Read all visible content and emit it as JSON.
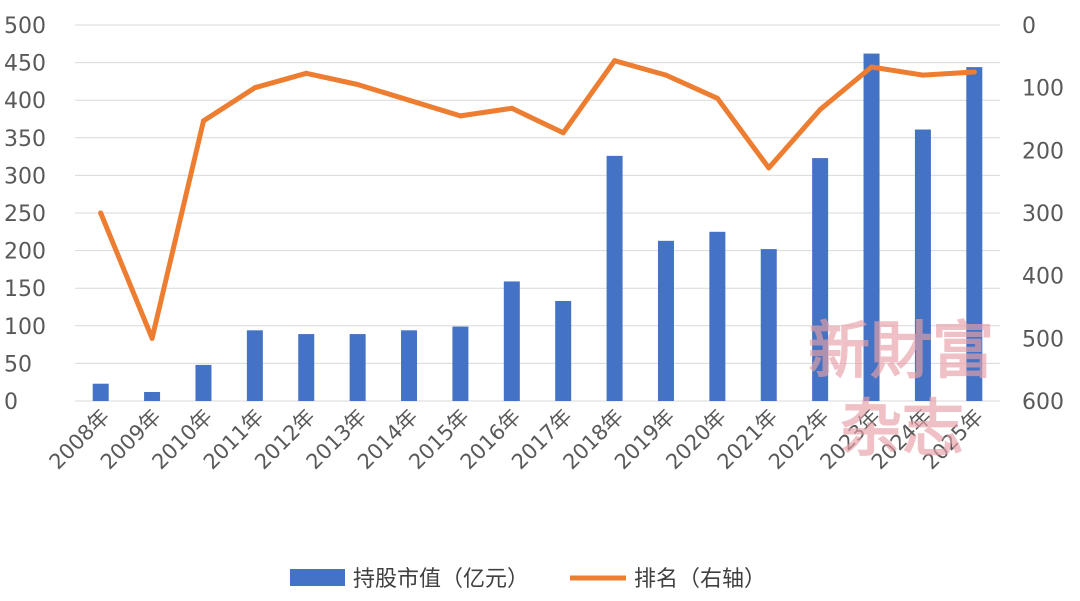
{
  "chart_data": {
    "type": "bar",
    "categories": [
      "2008年",
      "2009年",
      "2010年",
      "2011年",
      "2012年",
      "2013年",
      "2014年",
      "2015年",
      "2016年",
      "2017年",
      "2018年",
      "2019年",
      "2020年",
      "2021年",
      "2022年",
      "2023年",
      "2024年",
      "2025年"
    ],
    "series": [
      {
        "name": "持股市值（亿元）",
        "type": "bar",
        "axis": "left",
        "color": "#4472C4",
        "values": [
          23,
          12,
          48,
          94,
          89,
          89,
          94,
          99,
          159,
          133,
          326,
          213,
          225,
          202,
          323,
          462,
          361,
          444
        ]
      },
      {
        "name": "排名（右轴）",
        "type": "line",
        "axis": "right",
        "color": "#ED7D31",
        "values": [
          300,
          500,
          153,
          100,
          77,
          95,
          120,
          145,
          133,
          172,
          57,
          80,
          117,
          228,
          135,
          67,
          80,
          75
        ]
      }
    ],
    "left_axis": {
      "min": 0,
      "max": 500,
      "ticks": [
        "0",
        "50",
        "100",
        "150",
        "200",
        "250",
        "300",
        "350",
        "400",
        "450",
        "500"
      ]
    },
    "right_axis": {
      "min": 0,
      "max": 600,
      "reversed": true,
      "ticks": [
        "0",
        "100",
        "200",
        "300",
        "400",
        "500",
        "600"
      ]
    },
    "grid": true,
    "legend_position": "bottom"
  },
  "watermark": {
    "line1": "新財富",
    "line2": "杂志"
  }
}
